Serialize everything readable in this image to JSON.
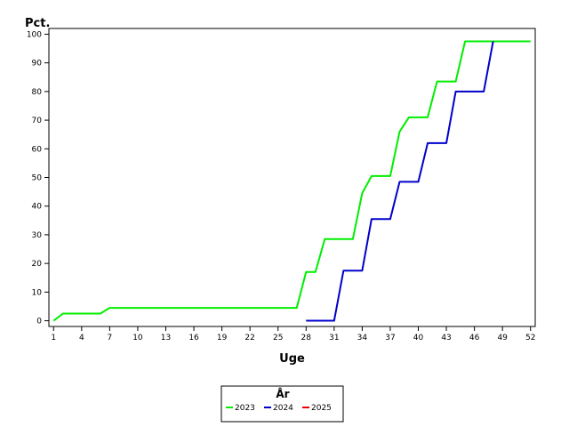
{
  "chart_data": {
    "type": "line",
    "title": "",
    "xlabel": "Uge",
    "ylabel": "Pct.",
    "xlim": [
      0.5,
      52.5
    ],
    "ylim": [
      -2,
      102
    ],
    "xticks": [
      1,
      4,
      7,
      10,
      13,
      16,
      19,
      22,
      25,
      28,
      31,
      34,
      37,
      40,
      43,
      46,
      49,
      52
    ],
    "yticks": [
      0,
      10,
      20,
      30,
      40,
      50,
      60,
      70,
      80,
      90,
      100
    ],
    "grid": false,
    "legend": {
      "title": "År",
      "placement": "bottom-center"
    },
    "series": [
      {
        "name": "2023",
        "color": "#00ee00",
        "x": [
          1,
          2,
          3,
          4,
          5,
          6,
          7,
          8,
          9,
          10,
          11,
          12,
          13,
          14,
          15,
          16,
          17,
          18,
          19,
          20,
          21,
          22,
          23,
          24,
          25,
          26,
          27,
          28,
          29,
          30,
          31,
          32,
          33,
          34,
          35,
          36,
          37,
          38,
          39,
          40,
          41,
          42,
          43,
          44,
          45,
          46,
          47,
          48,
          49,
          50,
          51,
          52
        ],
        "values": [
          0,
          2.5,
          2.5,
          2.5,
          2.5,
          2.5,
          4.5,
          4.5,
          4.5,
          4.5,
          4.5,
          4.5,
          4.5,
          4.5,
          4.5,
          4.5,
          4.5,
          4.5,
          4.5,
          4.5,
          4.5,
          4.5,
          4.5,
          4.5,
          4.5,
          4.5,
          4.5,
          17,
          17,
          28.5,
          28.5,
          28.5,
          28.5,
          44.5,
          50.5,
          50.5,
          50.5,
          66,
          71,
          71,
          71,
          83.5,
          83.5,
          83.5,
          97.5,
          97.5,
          97.5,
          97.5,
          97.5,
          97.5,
          97.5,
          97.5
        ]
      },
      {
        "name": "2024",
        "color": "#0000cc",
        "x": [
          28,
          29,
          30,
          31,
          32,
          33,
          34,
          35,
          36,
          37,
          38,
          39,
          40,
          41,
          42,
          43,
          44,
          45,
          46,
          47,
          48
        ],
        "values": [
          0,
          0,
          0,
          0,
          17.5,
          17.5,
          17.5,
          35.5,
          35.5,
          35.5,
          48.5,
          48.5,
          48.5,
          62,
          62,
          62,
          80,
          80,
          80,
          80,
          97.5
        ]
      },
      {
        "name": "2025",
        "color": "#ee0000",
        "x": [],
        "values": []
      }
    ]
  }
}
